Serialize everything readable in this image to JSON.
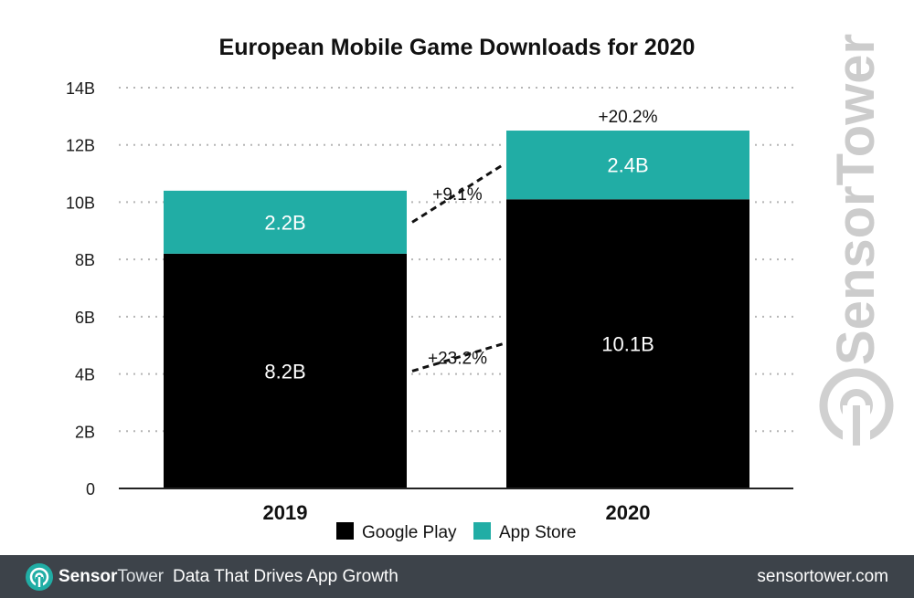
{
  "chart_data": {
    "type": "bar",
    "stacked": true,
    "title": "European Mobile Game Downloads for 2020",
    "categories": [
      "2019",
      "2020"
    ],
    "series": [
      {
        "name": "Google Play",
        "values": [
          8.2,
          10.1
        ],
        "value_labels": [
          "8.2B",
          "10.1B"
        ],
        "color": "#000000"
      },
      {
        "name": "App Store",
        "values": [
          2.2,
          2.4
        ],
        "value_labels": [
          "2.2B",
          "2.4B"
        ],
        "color": "#21ada5"
      }
    ],
    "growth_annotations": [
      {
        "text": "+23.2%",
        "series": "Google Play"
      },
      {
        "text": "+9.1%",
        "series": "App Store"
      },
      {
        "text": "+20.2%",
        "series": "Total"
      }
    ],
    "ylim": [
      0,
      14
    ],
    "yticks": [
      0,
      2,
      4,
      6,
      8,
      10,
      12,
      14
    ],
    "ytick_labels": [
      "0",
      "2B",
      "4B",
      "6B",
      "8B",
      "10B",
      "12B",
      "14B"
    ],
    "xlabel": "",
    "ylabel": "",
    "grid": true,
    "legend_position": "bottom-center"
  },
  "watermark": {
    "text": "SensorTower"
  },
  "footer": {
    "logo_icon": "sensortower-logo-icon",
    "brand_bold": "Sensor",
    "brand_light": "Tower",
    "tagline": "Data That Drives App Growth",
    "url": "sensortower.com"
  }
}
